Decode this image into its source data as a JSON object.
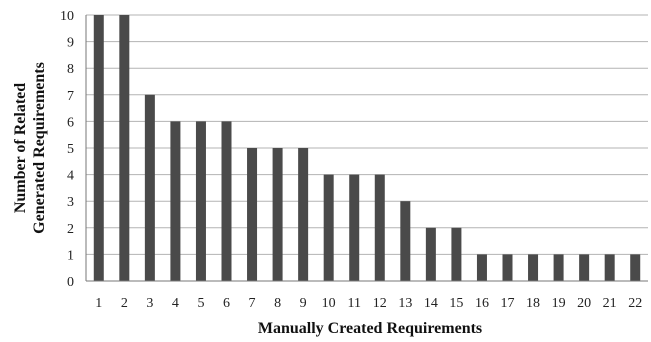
{
  "chart_data": {
    "type": "bar",
    "title": "",
    "xlabel": "Manually Created Requirements",
    "ylabel_lines": [
      "Number of Related",
      "Generated Requirements"
    ],
    "categories": [
      "1",
      "2",
      "3",
      "4",
      "5",
      "6",
      "7",
      "8",
      "9",
      "10",
      "11",
      "12",
      "13",
      "14",
      "15",
      "16",
      "17",
      "18",
      "19",
      "20",
      "21",
      "22"
    ],
    "values": [
      10,
      10,
      7,
      6,
      6,
      6,
      5,
      5,
      5,
      4,
      4,
      4,
      3,
      2,
      2,
      1,
      1,
      1,
      1,
      1,
      1,
      1
    ],
    "ylim": [
      0,
      10
    ],
    "yticks": [
      "0",
      "1",
      "2",
      "3",
      "4",
      "5",
      "6",
      "7",
      "8",
      "9",
      "10"
    ],
    "grid": true,
    "legend": "none",
    "bar_color": "#4a4a4a",
    "grid_color": "#b3b3b3"
  }
}
